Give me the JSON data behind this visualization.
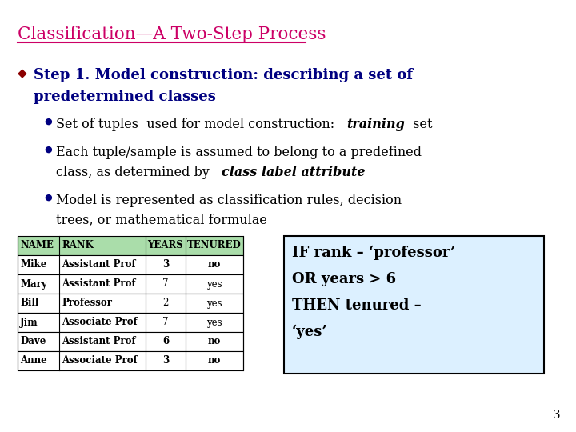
{
  "title": "Classification—A Two-Step Process",
  "title_color": "#CC0066",
  "background_color": "#FFFFFF",
  "bullet_color": "#8B0000",
  "bullet_char": "◆",
  "sub_bullet_color": "#000080",
  "sub_bullet_char": "●",
  "main_bullet_line1": "Step 1. Model construction: describing a set of",
  "main_bullet_line2": "predetermined classes",
  "main_bullet_color": "#000080",
  "sub_bullet1_normal": "Set of tuples  used for model construction:   ",
  "sub_bullet1_italic": "training",
  "sub_bullet1_normal2": "  set",
  "sub_bullet2_line1_normal": "Each tuple/sample is assumed to belong to a predefined",
  "sub_bullet2_line2_normal": "class, as determined by   ",
  "sub_bullet2_italic": "class label attribute",
  "sub_bullet3_line1": "Model is represented as classification rules, decision",
  "sub_bullet3_line2": "trees, or mathematical formulae",
  "table_headers": [
    "NAME",
    "RANK",
    "YEARS",
    "TENURED"
  ],
  "table_rows": [
    [
      "Mike",
      "Assistant Prof",
      "3",
      "no"
    ],
    [
      "Mary",
      "Assistant Prof",
      "7",
      "yes"
    ],
    [
      "Bill",
      "Professor",
      "2",
      "yes"
    ],
    [
      "Jim",
      "Associate Prof",
      "7",
      "yes"
    ],
    [
      "Dave",
      "Assistant Prof",
      "6",
      "no"
    ],
    [
      "Anne",
      "Associate Prof",
      "3",
      "no"
    ]
  ],
  "table_header_bg": "#AADDAA",
  "rule_box_text_line1": "IF rank – ‘professor’",
  "rule_box_text_line2": "OR years > 6",
  "rule_box_text_line3": "THEN tenured –",
  "rule_box_text_line4": "‘yes’",
  "rule_box_bg": "#DCF0FF",
  "page_number": "3"
}
